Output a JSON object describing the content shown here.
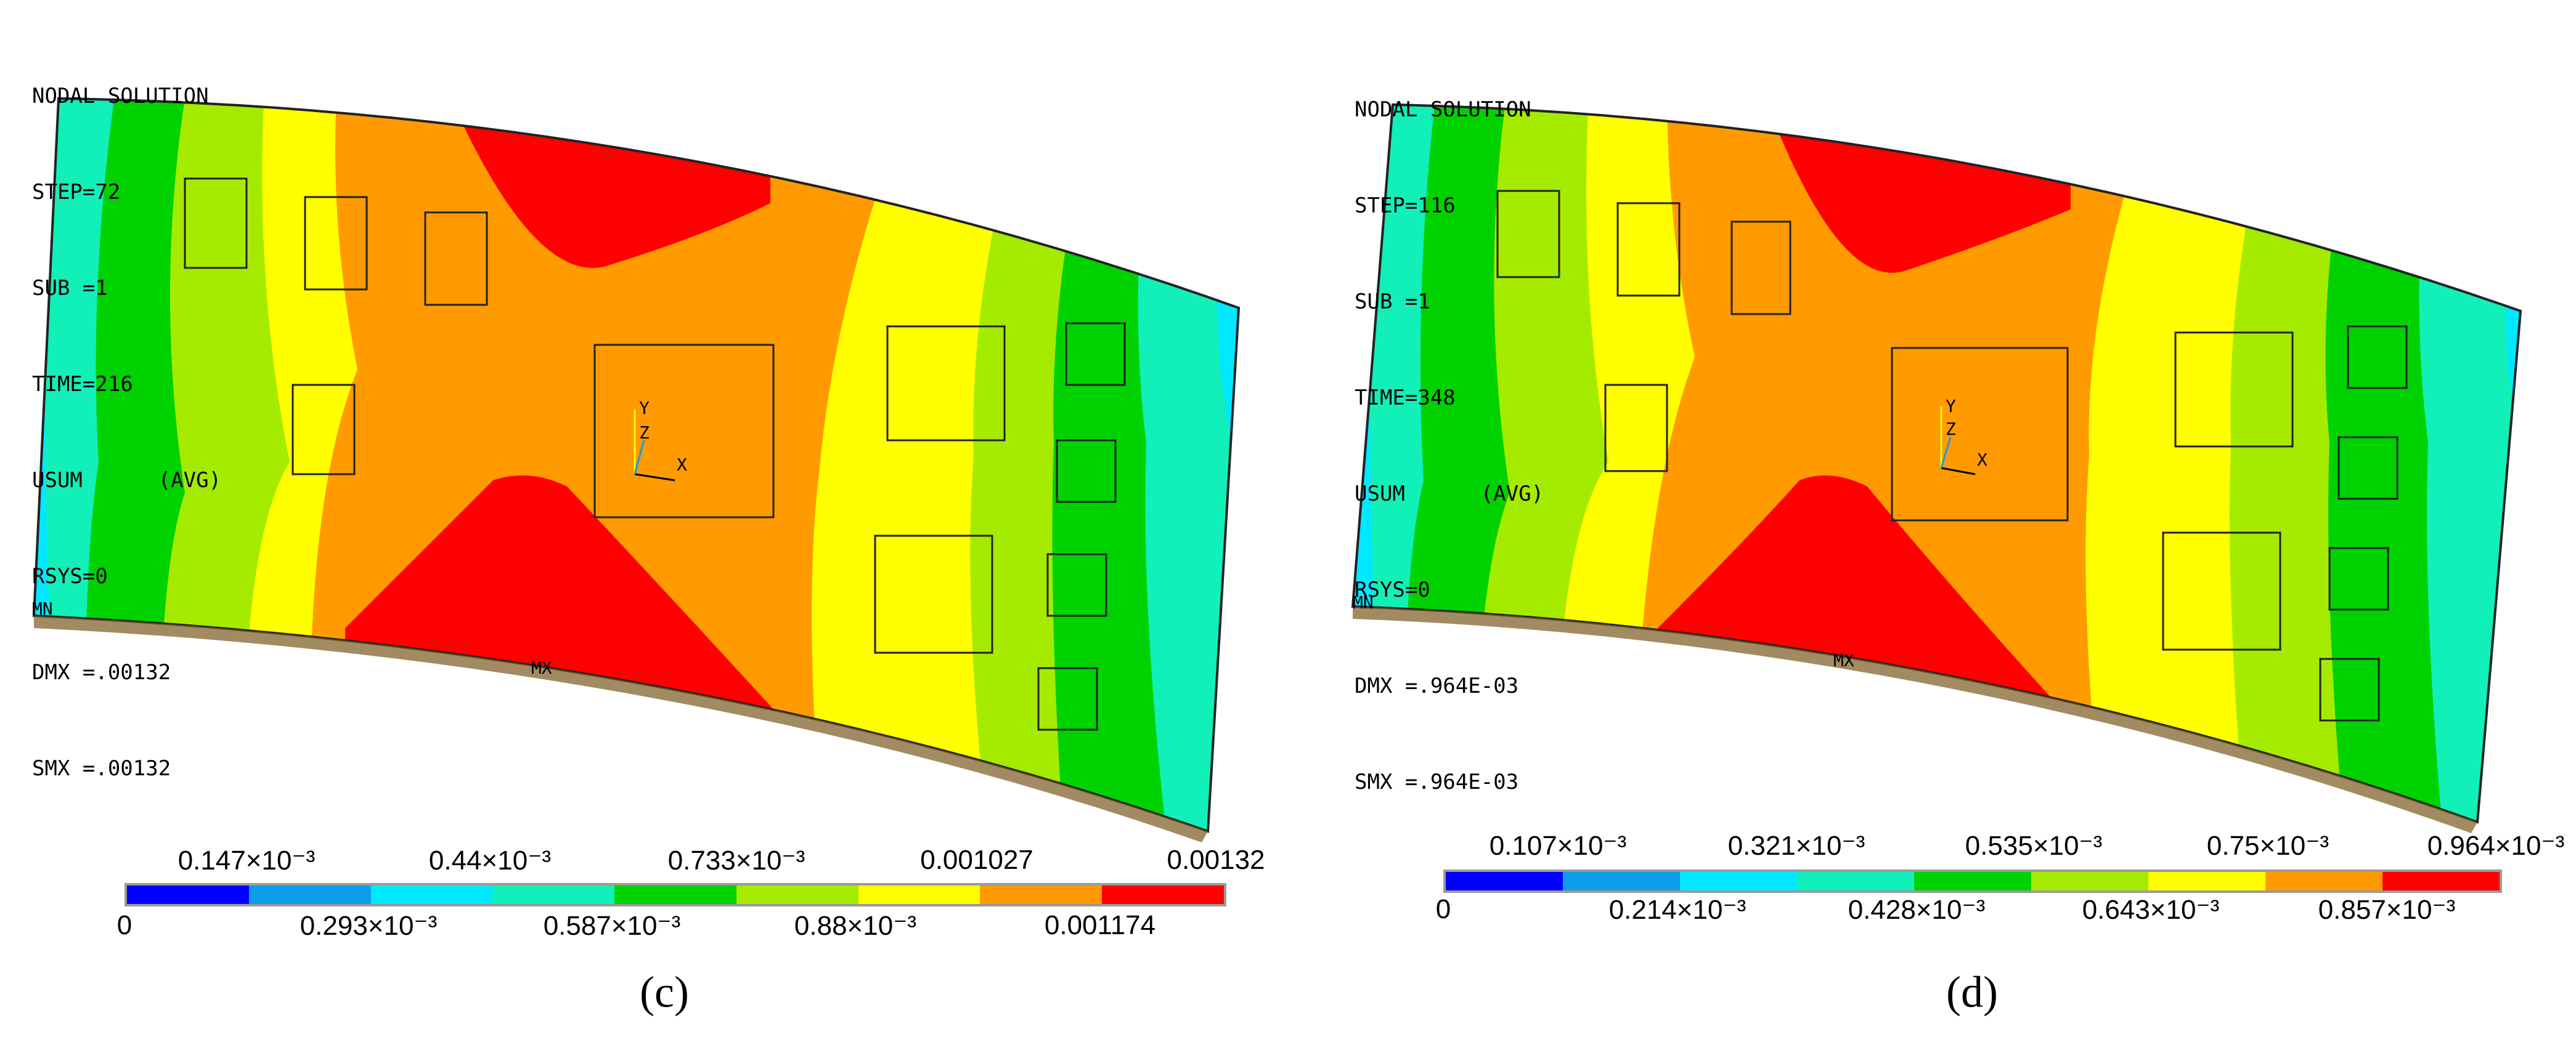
{
  "palette": [
    "#0000ff",
    "#0d9eeb",
    "#00e8ff",
    "#11f0b9",
    "#00d200",
    "#a5eb00",
    "#ffff00",
    "#ff9b00",
    "#ff0000"
  ],
  "panels": [
    {
      "caption": "(c)",
      "info": {
        "title": "NODAL SOLUTION",
        "step": "STEP=72",
        "sub": "SUB =1",
        "time": "TIME=216",
        "usum": "USUM      (AVG)",
        "rsys": "RSYS=0",
        "dmx": "DMX =.00132",
        "smx": "SMX =.00132"
      },
      "mn_label": "MN",
      "mx_label": "MX",
      "axis_labels": {
        "y": "Y",
        "z": "Z",
        "x": "X"
      },
      "scale_top": [
        "0.147×10⁻³",
        "0.44×10⁻³",
        "0.733×10⁻³",
        "0.001027",
        "0.00132"
      ],
      "scale_bottom": [
        "0",
        "0.293×10⁻³",
        "0.587×10⁻³",
        "0.88×10⁻³",
        "0.001174"
      ]
    },
    {
      "caption": "(d)",
      "info": {
        "title": "NODAL SOLUTION",
        "step": "STEP=116",
        "sub": "SUB =1",
        "time": "TIME=348",
        "usum": "USUM      (AVG)",
        "rsys": "RSYS=0",
        "dmx": "DMX =.964E-03",
        "smx": "SMX =.964E-03"
      },
      "mn_label": "MN",
      "mx_label": "MX",
      "axis_labels": {
        "y": "Y",
        "z": "Z",
        "x": "X"
      },
      "scale_top": [
        "0.107×10⁻³",
        "0.321×10⁻³",
        "0.535×10⁻³",
        "0.75×10⁻³",
        "0.964×10⁻³"
      ],
      "scale_bottom": [
        "0",
        "0.214×10⁻³",
        "0.428×10⁻³",
        "0.643×10⁻³",
        "0.857×10⁻³"
      ]
    }
  ]
}
